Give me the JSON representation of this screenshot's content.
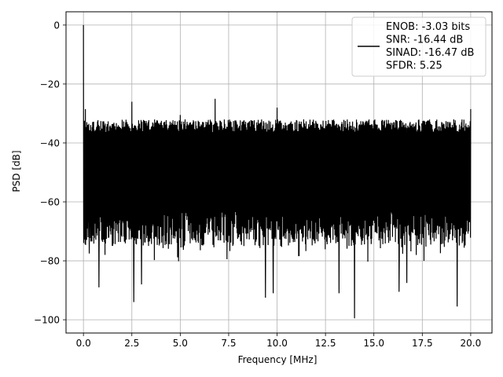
{
  "chart_data": {
    "type": "line",
    "title": "",
    "xlabel": "Frequency [MHz]",
    "ylabel": "PSD [dB]",
    "xlim": [
      -0.9,
      21.1
    ],
    "ylim": [
      -104.5,
      4.5
    ],
    "xticks": [
      0.0,
      2.5,
      5.0,
      7.5,
      10.0,
      12.5,
      15.0,
      17.5,
      20.0
    ],
    "xtick_labels": [
      "0.0",
      "2.5",
      "5.0",
      "7.5",
      "10.0",
      "12.5",
      "15.0",
      "17.5",
      "20.0"
    ],
    "yticks": [
      0,
      -20,
      -40,
      -60,
      -80,
      -100
    ],
    "ytick_labels": [
      "0",
      "−20",
      "−40",
      "−60",
      "−80",
      "−100"
    ],
    "grid": true,
    "legend_position": "upper-right",
    "series": [
      {
        "name": "ENOB: -3.03 bits\nSNR: -16.44 dB\nSINAD: -16.47 dB\nSFDR: 5.25",
        "color": "#000000",
        "x_range": [
          0.0,
          20.0
        ],
        "noise_floor_top_db": -32,
        "noise_floor_bottom_db": -80,
        "peaks": [
          {
            "x": 0.0,
            "y": 0.0
          },
          {
            "x": 0.1,
            "y": -28.5
          },
          {
            "x": 2.5,
            "y": -26.0
          },
          {
            "x": 5.0,
            "y": -30.5
          },
          {
            "x": 6.8,
            "y": -25.0
          },
          {
            "x": 10.0,
            "y": -28.0
          },
          {
            "x": 20.0,
            "y": -28.5
          }
        ],
        "dips": [
          {
            "x": 0.3,
            "y": -77.5
          },
          {
            "x": 0.8,
            "y": -89.0
          },
          {
            "x": 2.6,
            "y": -94.0
          },
          {
            "x": 3.0,
            "y": -88.0
          },
          {
            "x": 9.4,
            "y": -92.5
          },
          {
            "x": 9.8,
            "y": -91.0
          },
          {
            "x": 13.2,
            "y": -91.0
          },
          {
            "x": 14.0,
            "y": -99.5
          },
          {
            "x": 16.3,
            "y": -90.5
          },
          {
            "x": 16.7,
            "y": -87.5
          },
          {
            "x": 19.3,
            "y": -95.5
          }
        ]
      }
    ]
  }
}
